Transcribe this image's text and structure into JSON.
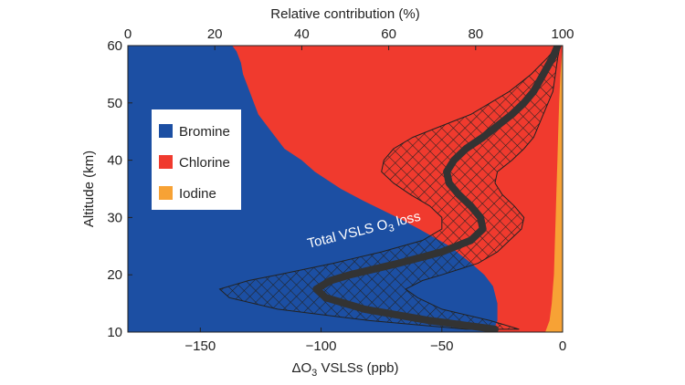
{
  "chart_data": {
    "type": "area",
    "top_axis_title": "Relative contribution (%)",
    "bottom_axis_title_prefix": "ΔO",
    "bottom_axis_title_sub": "3",
    "bottom_axis_title_suffix": " VSLSs (ppb)",
    "ylabel": "Altitude (km)",
    "top_ticks": [
      "0",
      "20",
      "40",
      "60",
      "80",
      "100"
    ],
    "bottom_ticks": [
      "−150",
      "−100",
      "−50",
      "0"
    ],
    "y_ticks": [
      "10",
      "20",
      "30",
      "40",
      "50",
      "60"
    ],
    "top_xlim": [
      0,
      100
    ],
    "bottom_xlim": [
      -180,
      0
    ],
    "ylim": [
      10,
      60
    ],
    "legend_position": "left",
    "series": [
      {
        "name": "Bromine",
        "color": "#1c4fa3",
        "altitude": [
          10,
          12,
          15,
          18,
          20,
          22,
          25,
          28,
          30,
          33,
          35,
          38,
          40,
          42,
          45,
          48,
          50,
          52,
          55,
          57,
          58,
          59,
          60
        ],
        "upper_pct": [
          84,
          85,
          85,
          84,
          82,
          79,
          74,
          67,
          62,
          54,
          49,
          43,
          40,
          36,
          33,
          30,
          29,
          28,
          26.5,
          26,
          25.5,
          25,
          24
        ]
      },
      {
        "name": "Chlorine",
        "color": "#f03a2e",
        "altitude": [
          10,
          12,
          15,
          18,
          20,
          25,
          30,
          35,
          40,
          45,
          50,
          55,
          58,
          60
        ],
        "upper_pct": [
          96,
          97,
          97.5,
          97.8,
          98,
          98.2,
          98.4,
          98.6,
          98.8,
          99,
          99.2,
          99.5,
          99.8,
          100
        ]
      },
      {
        "name": "Iodine",
        "color": "#f7a235",
        "altitude": [
          10,
          12,
          15,
          18,
          20,
          25,
          30,
          35,
          40,
          45,
          50,
          55,
          58,
          60
        ],
        "upper_pct": [
          100,
          100,
          100,
          100,
          100,
          100,
          100,
          100,
          100,
          100,
          100,
          100,
          100,
          100
        ]
      }
    ],
    "total_o3_loss": {
      "name": "Total VSLS O3 loss",
      "color": "#333333",
      "altitude": [
        10.5,
        12,
        14,
        16,
        17.5,
        19,
        20,
        22,
        24,
        26,
        28,
        30,
        32,
        34,
        36,
        38,
        40,
        42,
        44,
        46,
        48,
        50,
        52,
        55,
        58,
        60
      ],
      "o3_loss_ppb": [
        -28,
        -55,
        -82,
        -98,
        -102,
        -96,
        -88,
        -68,
        -50,
        -38,
        -33,
        -34,
        -38,
        -43,
        -47,
        -48,
        -45,
        -40,
        -33,
        -27,
        -21,
        -16,
        -12,
        -8,
        -4,
        -2
      ]
    },
    "uncertainty_band": {
      "fill_pattern": "crosshatch",
      "altitude": [
        10.5,
        12,
        14,
        16,
        17.5,
        19,
        20,
        22,
        24,
        26,
        28,
        30,
        32,
        34,
        36,
        38,
        40,
        42,
        44,
        46,
        48,
        50,
        52,
        55,
        58,
        60
      ],
      "lower_ppb": [
        -40,
        -80,
        -118,
        -138,
        -142,
        -130,
        -118,
        -95,
        -75,
        -58,
        -50,
        -50,
        -55,
        -63,
        -70,
        -75,
        -74,
        -70,
        -62,
        -50,
        -38,
        -30,
        -22,
        -13,
        -6,
        -2
      ],
      "upper_ppb": [
        -18,
        -30,
        -50,
        -60,
        -65,
        -58,
        -50,
        -35,
        -27,
        -22,
        -17,
        -16,
        -20,
        -25,
        -28,
        -27,
        -21,
        -16,
        -12,
        -10,
        -8,
        -6,
        -4,
        -3,
        -2,
        -1
      ]
    }
  },
  "legend": [
    {
      "label": "Bromine",
      "color": "#1c4fa3"
    },
    {
      "label": "Chlorine",
      "color": "#f03a2e"
    },
    {
      "label": "Iodine",
      "color": "#f7a235"
    }
  ],
  "annotation": {
    "prefix": "Total VSLS O",
    "sub": "3",
    "suffix": " loss"
  }
}
